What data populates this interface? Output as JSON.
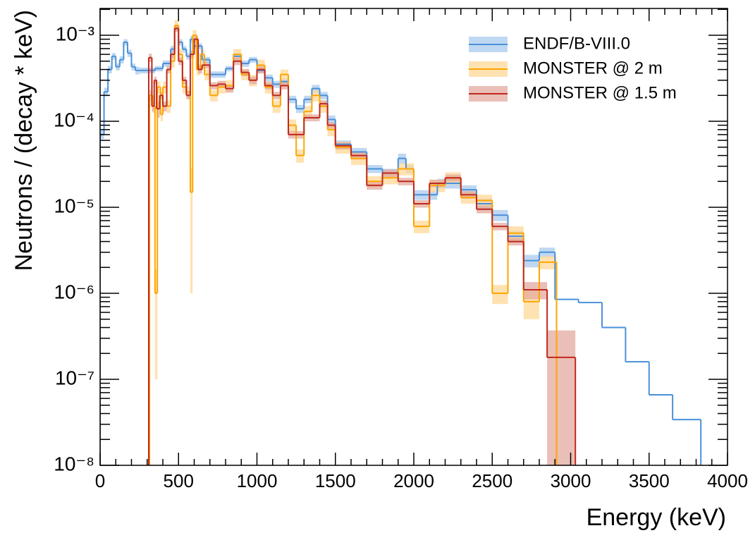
{
  "chart_data": {
    "type": "step-histogram",
    "xlabel": "Energy (keV)",
    "ylabel": "Neutrons / (decay * keV)",
    "xlim": [
      0,
      4000
    ],
    "ylim": [
      1e-08,
      0.00205
    ],
    "log_y": true,
    "legend": "upper right",
    "xticks": [
      0,
      500,
      1000,
      1500,
      2000,
      2500,
      3000,
      3500,
      4000
    ],
    "xminorticks": [
      100,
      200,
      300,
      400,
      600,
      700,
      800,
      900,
      1100,
      1200,
      1300,
      1400,
      1600,
      1700,
      1800,
      1900,
      2100,
      2200,
      2300,
      2400,
      2600,
      2700,
      2800,
      2900,
      3100,
      3200,
      3300,
      3400,
      3600,
      3700,
      3800,
      3900
    ],
    "yticks": [
      {
        "value": 1e-08,
        "label": "10⁻⁸"
      },
      {
        "value": 1e-07,
        "label": "10⁻⁷"
      },
      {
        "value": 1e-06,
        "label": "10⁻⁶"
      },
      {
        "value": 1e-05,
        "label": "10⁻⁵"
      },
      {
        "value": 0.0001,
        "label": "10⁻⁴"
      },
      {
        "value": 0.001,
        "label": "10⁻³"
      }
    ],
    "yminorticks": [
      2e-08,
      3e-08,
      4e-08,
      5e-08,
      6e-08,
      7e-08,
      8e-08,
      9e-08,
      2e-07,
      3e-07,
      4e-07,
      5e-07,
      6e-07,
      7e-07,
      8e-07,
      9e-07,
      2e-06,
      3e-06,
      4e-06,
      5e-06,
      6e-06,
      7e-06,
      8e-06,
      9e-06,
      2e-05,
      3e-05,
      4e-05,
      5e-05,
      6e-05,
      7e-05,
      8e-05,
      9e-05,
      0.0002,
      0.0003,
      0.0004,
      0.0005,
      0.0006,
      0.0007,
      0.0008,
      0.0009,
      0.002
    ],
    "series": [
      {
        "name": "ENDF/B-VIII.0",
        "color": "#4a90d9",
        "band_color": "#a9cbee",
        "bins": [
          0,
          25,
          50,
          75,
          100,
          125,
          150,
          175,
          200,
          225,
          250,
          300,
          350,
          400,
          450,
          475,
          500,
          525,
          550,
          575,
          600,
          650,
          700,
          750,
          800,
          850,
          900,
          950,
          1000,
          1050,
          1100,
          1150,
          1200,
          1250,
          1300,
          1350,
          1400,
          1450,
          1500,
          1600,
          1700,
          1800,
          1900,
          1950,
          2000,
          2150,
          2300,
          2400,
          2500,
          2600,
          2700,
          2800,
          2900,
          3050,
          3200,
          3350,
          3500,
          3650,
          3830
        ],
        "values": [
          7e-05,
          0.00022,
          0.0004,
          0.00057,
          0.00043,
          0.00052,
          0.00083,
          0.00062,
          0.00043,
          0.00039,
          0.00039,
          0.00039,
          0.00041,
          0.00047,
          0.00069,
          0.0012,
          0.00083,
          0.00069,
          0.00057,
          0.0009,
          0.00075,
          0.00052,
          0.00035,
          0.00035,
          0.00041,
          0.00057,
          0.00047,
          0.00052,
          0.00039,
          0.00032,
          0.00027,
          0.00029,
          0.00018,
          0.00014,
          0.00018,
          0.00024,
          0.0002,
          0.000105,
          5.4e-05,
          4.4e-05,
          2.8e-05,
          2.5e-05,
          3.7e-05,
          2.8e-05,
          1.4e-05,
          1.9e-05,
          1.6e-05,
          1.1e-05,
          8.1e-06,
          4.6e-06,
          2.4e-06,
          3e-06,
          8.5e-07,
          7.8e-07,
          4e-07,
          1.6e-07,
          6.6e-08,
          3.4e-08
        ],
        "errors": [
          8e-06,
          2.5e-05,
          4e-05,
          5e-05,
          4e-05,
          5e-05,
          7e-05,
          6e-05,
          4e-05,
          4e-05,
          3e-05,
          3e-05,
          3e-05,
          4e-05,
          6e-05,
          0.0001,
          7e-05,
          6e-05,
          5e-05,
          8e-05,
          6e-05,
          4e-05,
          3e-05,
          3e-05,
          3e-05,
          5e-05,
          4e-05,
          4e-05,
          3e-05,
          3e-05,
          2.5e-05,
          2.5e-05,
          1.8e-05,
          1.5e-05,
          1.8e-05,
          2.5e-05,
          2e-05,
          1.2e-05,
          6e-06,
          5e-06,
          3e-06,
          3e-06,
          5e-06,
          3e-06,
          1.8e-06,
          2.5e-06,
          2e-06,
          1.6e-06,
          1.2e-06,
          7e-07,
          4e-07,
          4e-07,
          0,
          0,
          0,
          0,
          0,
          0
        ]
      },
      {
        "name": "MONSTER @ 2 m",
        "color": "#ffa500",
        "band_color": "#ffd897",
        "bins": [
          315,
          335,
          350,
          365,
          385,
          400,
          425,
          450,
          475,
          500,
          525,
          550,
          575,
          590,
          615,
          640,
          665,
          700,
          750,
          800,
          850,
          900,
          950,
          1000,
          1050,
          1100,
          1150,
          1200,
          1250,
          1300,
          1350,
          1400,
          1450,
          1500,
          1600,
          1700,
          1800,
          1900,
          2000,
          2100,
          2200,
          2300,
          2400,
          2500,
          2600,
          2700,
          2800,
          2910
        ],
        "values": [
          0.0002,
          0.00015,
          1e-06,
          0.00025,
          0.00012,
          0.00025,
          0.00015,
          0.0005,
          0.0013,
          0.0006,
          0.00025,
          0.00022,
          1.5e-05,
          0.001,
          0.0004,
          0.0006,
          0.00035,
          0.0002,
          0.00025,
          0.00026,
          0.0006,
          0.00035,
          0.0003,
          0.00045,
          0.00025,
          0.00015,
          0.00035,
          9e-05,
          4e-05,
          0.00013,
          0.0002,
          0.00015,
          8e-05,
          5e-05,
          3.7e-05,
          2e-05,
          2.2e-05,
          2.8e-05,
          6e-06,
          1.8e-05,
          2.2e-05,
          1.3e-05,
          1.2e-05,
          1e-06,
          5e-06,
          8e-07,
          2.3e-06
        ],
        "errors": [
          3e-05,
          2.5e-05,
          9e-07,
          4e-05,
          2e-05,
          4e-05,
          2.5e-05,
          8e-05,
          0.0002,
          9e-05,
          4e-05,
          3.5e-05,
          1.4e-05,
          0.00015,
          6e-05,
          9e-05,
          5e-05,
          3e-05,
          4e-05,
          4e-05,
          9e-05,
          5e-05,
          4.5e-05,
          7e-05,
          4e-05,
          2.5e-05,
          5e-05,
          1.5e-05,
          7e-06,
          2e-05,
          3e-05,
          2.5e-05,
          1.3e-05,
          8e-06,
          6e-06,
          3e-06,
          3.5e-06,
          4.5e-06,
          1e-06,
          3e-06,
          3.5e-06,
          2e-06,
          2e-06,
          2.5e-07,
          1e-06,
          3e-07,
          4e-07
        ]
      },
      {
        "name": "MONSTER @ 1.5 m",
        "color": "#c0281b",
        "band_color": "#e3a99f",
        "bins": [
          310,
          330,
          345,
          360,
          380,
          400,
          425,
          450,
          475,
          500,
          525,
          550,
          575,
          600,
          625,
          650,
          700,
          750,
          800,
          850,
          900,
          950,
          1000,
          1050,
          1100,
          1150,
          1200,
          1300,
          1400,
          1450,
          1500,
          1600,
          1700,
          1800,
          1900,
          2000,
          2100,
          2200,
          2300,
          2400,
          2500,
          2600,
          2700,
          2850,
          3030
        ],
        "values": [
          0.00055,
          0.00015,
          0.0003,
          0.00014,
          0.0002,
          0.00015,
          0.0004,
          0.0006,
          0.0012,
          0.0005,
          0.0003,
          0.0002,
          0.0006,
          0.0009,
          0.0004,
          0.00045,
          0.00026,
          0.00027,
          0.00024,
          0.0005,
          0.00037,
          0.0003,
          0.0004,
          0.00026,
          0.0002,
          0.00026,
          7e-05,
          0.00011,
          0.00016,
          9e-05,
          5.2e-05,
          4e-05,
          1.8e-05,
          2.5e-05,
          2e-05,
          1.1e-05,
          1.9e-05,
          2.2e-05,
          1.4e-05,
          9.5e-06,
          6e-06,
          4e-06,
          1.1e-06,
          1.8e-07
        ],
        "errors": [
          6e-05,
          2e-05,
          3e-05,
          3e-05,
          2e-05,
          2e-05,
          4e-05,
          6e-05,
          0.0001,
          5e-05,
          3e-05,
          2e-05,
          6e-05,
          8e-05,
          4e-05,
          4e-05,
          2.5e-05,
          2.5e-05,
          2.5e-05,
          5e-05,
          3.5e-05,
          3e-05,
          4e-05,
          2.5e-05,
          2e-05,
          2.5e-05,
          7e-06,
          1e-05,
          1.5e-05,
          8e-06,
          5e-06,
          4e-06,
          2e-06,
          2.5e-06,
          2e-06,
          1.1e-06,
          1.9e-06,
          2e-06,
          1.4e-06,
          1e-06,
          6e-07,
          4e-07,
          2.5e-07,
          1.9e-07
        ]
      }
    ]
  }
}
